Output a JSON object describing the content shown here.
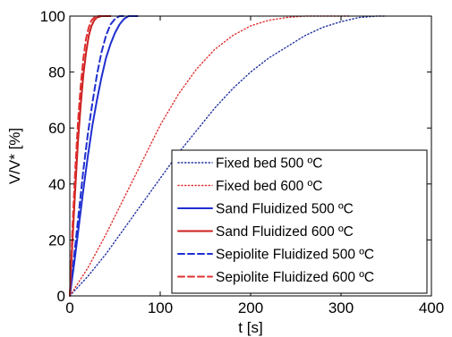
{
  "chart_data": {
    "type": "line",
    "xlabel": "t [s]",
    "ylabel": "V/V* [%]",
    "xlim": [
      0,
      400
    ],
    "ylim": [
      0,
      100
    ],
    "xticks": [
      0,
      100,
      200,
      300,
      400
    ],
    "yticks": [
      0,
      20,
      40,
      60,
      80,
      100
    ],
    "xtick_labels": [
      "0",
      "100",
      "200",
      "300",
      "400"
    ],
    "ytick_labels": [
      "0",
      "20",
      "40",
      "60",
      "80",
      "100"
    ],
    "grid": false,
    "legend_position": "bottom-right",
    "series": [
      {
        "name": "Fixed bed 500 ºC",
        "color": "#1f2f9e",
        "line_style": "dotted",
        "x": [
          0,
          20,
          40,
          60,
          80,
          100,
          120,
          140,
          160,
          180,
          200,
          220,
          240,
          260,
          280,
          300,
          320,
          340,
          350
        ],
        "y": [
          0,
          7,
          15,
          24,
          33,
          42,
          51,
          59,
          67,
          74,
          80,
          85,
          89,
          93,
          96,
          98,
          99.5,
          100,
          100
        ]
      },
      {
        "name": "Fixed bed 600 ºC",
        "color": "#e03030",
        "line_style": "dotted",
        "x": [
          0,
          20,
          40,
          60,
          80,
          100,
          120,
          140,
          160,
          180,
          200,
          220,
          240,
          260,
          280,
          300,
          310
        ],
        "y": [
          0,
          10,
          22,
          35,
          48,
          61,
          72,
          81,
          88,
          93,
          96.5,
          98.5,
          99.5,
          100,
          100,
          100,
          100
        ]
      },
      {
        "name": "Sand Fluidized 500 ºC",
        "color": "#1f2fd0",
        "line_style": "solid",
        "x": [
          0,
          5,
          10,
          15,
          20,
          25,
          30,
          35,
          40,
          45,
          50,
          55,
          60,
          65,
          70,
          75
        ],
        "y": [
          0,
          12,
          25,
          38,
          50,
          61,
          70,
          78,
          85,
          90,
          94,
          97,
          99,
          100,
          100,
          100
        ]
      },
      {
        "name": "Sand Fluidized 600 ºC",
        "color": "#cc1f1f",
        "line_style": "solid",
        "x": [
          0,
          3,
          6,
          9,
          12,
          15,
          18,
          21,
          24,
          27,
          30,
          35,
          40,
          45
        ],
        "y": [
          0,
          20,
          38,
          55,
          68,
          79,
          87,
          93,
          96.5,
          98.5,
          99.5,
          100,
          100,
          100
        ]
      },
      {
        "name": "Sepiolite Fluidized 500 ºC",
        "color": "#1f2fd0",
        "line_style": "dashed",
        "x": [
          0,
          5,
          10,
          15,
          20,
          25,
          30,
          35,
          40,
          45,
          50,
          55,
          60
        ],
        "y": [
          0,
          15,
          30,
          45,
          58,
          69,
          79,
          87,
          93,
          97,
          99,
          100,
          100
        ]
      },
      {
        "name": "Sepiolite Fluidized 600 ºC",
        "color": "#e03030",
        "line_style": "dashed",
        "x": [
          0,
          3,
          6,
          9,
          12,
          15,
          18,
          21,
          24,
          27,
          30,
          35,
          40
        ],
        "y": [
          0,
          25,
          45,
          62,
          75,
          85,
          92,
          96,
          98.5,
          99.5,
          100,
          100,
          100
        ]
      }
    ]
  }
}
